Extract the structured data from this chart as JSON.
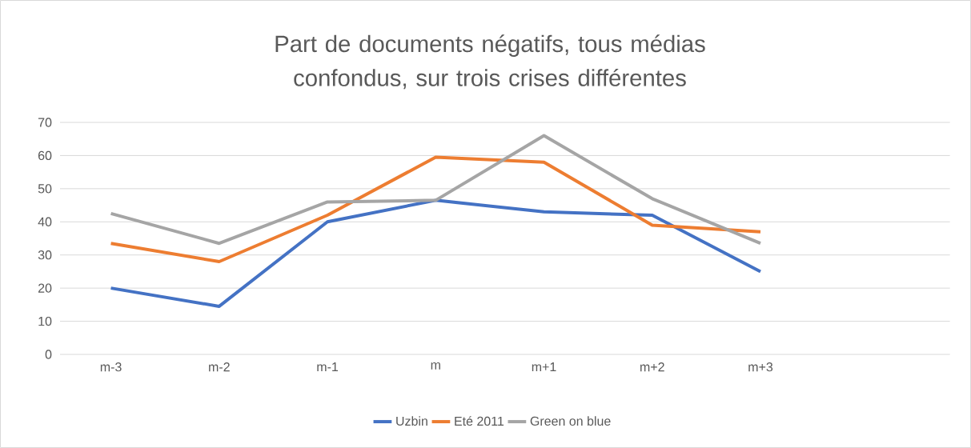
{
  "chart_data": {
    "type": "line",
    "title": "Part de documents négatifs, tous médias confondus, sur trois crises différentes",
    "categories": [
      "m-3",
      "m-2",
      "m-1",
      "m",
      "m+1",
      "m+2",
      "m+3"
    ],
    "series": [
      {
        "name": "Uzbin",
        "color": "#4472c4",
        "values": [
          20,
          14.5,
          40,
          46.5,
          43,
          42,
          25
        ]
      },
      {
        "name": "Eté 2011",
        "color": "#ed7d31",
        "values": [
          33.5,
          28,
          42,
          59.5,
          58,
          39,
          37
        ]
      },
      {
        "name": "Green on blue",
        "color": "#a5a5a5",
        "values": [
          42.5,
          33.5,
          46,
          46.5,
          66,
          47,
          33.5
        ]
      }
    ],
    "ylim": [
      0,
      70
    ],
    "yticks": [
      0,
      10,
      20,
      30,
      40,
      50,
      60,
      70
    ],
    "grid": "y",
    "legend": "bottom"
  }
}
